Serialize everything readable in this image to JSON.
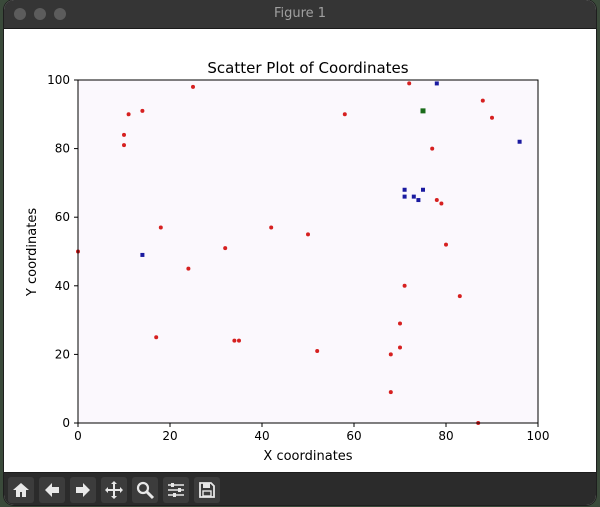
{
  "window": {
    "title": "Figure 1"
  },
  "toolbar": {
    "buttons": [
      {
        "name": "home-button",
        "icon": "home-icon"
      },
      {
        "name": "back-button",
        "icon": "arrow-left-icon"
      },
      {
        "name": "forward-button",
        "icon": "arrow-right-icon"
      },
      {
        "name": "pan-button",
        "icon": "move-icon"
      },
      {
        "name": "zoom-button",
        "icon": "magnifier-icon"
      },
      {
        "name": "configure-subplots-button",
        "icon": "sliders-icon"
      },
      {
        "name": "save-button",
        "icon": "floppy-disk-icon"
      }
    ]
  },
  "chart_data": {
    "type": "scatter",
    "title": "Scatter Plot of Coordinates",
    "xlabel": "X coordinates",
    "ylabel": "Y coordinates",
    "xlim": [
      0,
      100
    ],
    "ylim": [
      0,
      100
    ],
    "xticks": [
      "0",
      "20",
      "40",
      "60",
      "80",
      "100"
    ],
    "yticks": [
      "0",
      "20",
      "40",
      "60",
      "80",
      "100"
    ],
    "grid": false,
    "plot_background": "#fbf8fd",
    "series": [
      {
        "color": "#d62020",
        "marker": "circle",
        "points": [
          [
            0,
            50
          ],
          [
            10,
            81
          ],
          [
            10,
            84
          ],
          [
            11,
            90
          ],
          [
            14,
            91
          ],
          [
            25,
            98
          ],
          [
            18,
            57
          ],
          [
            17,
            25
          ],
          [
            24,
            45
          ],
          [
            32,
            51
          ],
          [
            34,
            24
          ],
          [
            35,
            24
          ],
          [
            42,
            57
          ],
          [
            50,
            55
          ],
          [
            52,
            21
          ],
          [
            58,
            90
          ],
          [
            68,
            9
          ],
          [
            68,
            20
          ],
          [
            70,
            22
          ],
          [
            70,
            29
          ],
          [
            71,
            40
          ],
          [
            72,
            99
          ],
          [
            77,
            80
          ],
          [
            78,
            65
          ],
          [
            79,
            64
          ],
          [
            80,
            52
          ],
          [
            83,
            37
          ],
          [
            87,
            0
          ],
          [
            88,
            94
          ],
          [
            90,
            89
          ]
        ]
      },
      {
        "color": "#1a1aa0",
        "marker": "square",
        "points": [
          [
            14,
            49
          ],
          [
            71,
            66
          ],
          [
            71,
            68
          ],
          [
            73,
            66
          ],
          [
            74,
            65
          ],
          [
            75,
            68
          ],
          [
            78,
            99
          ],
          [
            96,
            82
          ]
        ]
      },
      {
        "color": "#1a6b1a",
        "marker": "square",
        "points": [
          [
            75,
            91
          ]
        ]
      }
    ]
  }
}
